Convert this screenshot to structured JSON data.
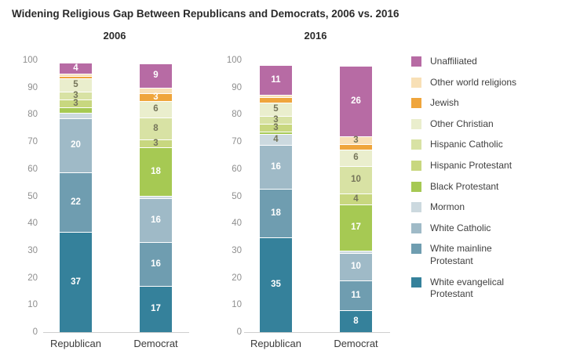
{
  "header": {
    "title": "Widening Religious Gap Between Republicans and Democrats, 2006 vs. 2016"
  },
  "chart_data": {
    "type": "bar",
    "stacked": true,
    "ylim": [
      0,
      100
    ],
    "yticks": [
      0,
      10,
      20,
      30,
      40,
      50,
      60,
      70,
      80,
      90,
      100
    ],
    "grid": false,
    "legend_position": "right",
    "series_bottom_to_top": [
      {
        "name": "White evangelical Protestant",
        "color": "#35819b",
        "label_color": "#ffffff"
      },
      {
        "name": "White mainline Protestant",
        "color": "#6f9db0",
        "label_color": "#ffffff"
      },
      {
        "name": "White Catholic",
        "color": "#9fbac7",
        "label_color": "#ffffff"
      },
      {
        "name": "Mormon",
        "color": "#ccd9df",
        "label_color": "#75755a"
      },
      {
        "name": "Black Protestant",
        "color": "#a6c953",
        "label_color": "#ffffff"
      },
      {
        "name": "Hispanic Protestant",
        "color": "#c8d77f",
        "label_color": "#75755a"
      },
      {
        "name": "Hispanic Catholic",
        "color": "#d8e2a4",
        "label_color": "#75755a"
      },
      {
        "name": "Other Christian",
        "color": "#eaeecd",
        "label_color": "#75755a"
      },
      {
        "name": "Jewish",
        "color": "#efa53c",
        "label_color": "#ffffff"
      },
      {
        "name": "Other world religions",
        "color": "#f8e0b6",
        "label_color": "#75755a"
      },
      {
        "name": "Unaffiliated",
        "color": "#b76ba4",
        "label_color": "#ffffff"
      }
    ],
    "panels": [
      {
        "title": "2006",
        "bars": [
          {
            "label": "Republican",
            "values": [
              37,
              22,
              20,
              2,
              2,
              3,
              3,
              5,
              1,
              1,
              4
            ]
          },
          {
            "label": "Democrat",
            "values": [
              17,
              16,
              16,
              1,
              18,
              3,
              8,
              6,
              3,
              2,
              9
            ]
          }
        ]
      },
      {
        "title": "2016",
        "bars": [
          {
            "label": "Republican",
            "values": [
              35,
              18,
              16,
              4,
              1,
              3,
              3,
              5,
              2,
              1,
              11
            ]
          },
          {
            "label": "Democrat",
            "values": [
              8,
              11,
              10,
              1,
              17,
              4,
              10,
              6,
              2,
              3,
              26
            ]
          }
        ]
      }
    ],
    "min_labeled_value": 3
  },
  "legend": {
    "items": [
      {
        "label": "Unaffiliated",
        "color": "#b76ba4"
      },
      {
        "label": "Other world religions",
        "color": "#f8e0b6"
      },
      {
        "label": "Jewish",
        "color": "#efa53c"
      },
      {
        "label": "Other Christian",
        "color": "#eaeecd"
      },
      {
        "label": "Hispanic Catholic",
        "color": "#d8e2a4"
      },
      {
        "label": "Hispanic Protestant",
        "color": "#c8d77f"
      },
      {
        "label": "Black Protestant",
        "color": "#a6c953"
      },
      {
        "label": "Mormon",
        "color": "#ccd9df"
      },
      {
        "label": "White Catholic",
        "color": "#9fbac7"
      },
      {
        "label": "White mainline Protestant",
        "color": "#6f9db0"
      },
      {
        "label": "White evangelical Protestant",
        "color": "#35819b"
      }
    ]
  },
  "colors": {
    "axis_line": "#cfcfcf",
    "tick_label": "#8f8f8f",
    "category_label": "#3b3b3b",
    "title": "#2b2b2b",
    "background": "#ffffff"
  }
}
